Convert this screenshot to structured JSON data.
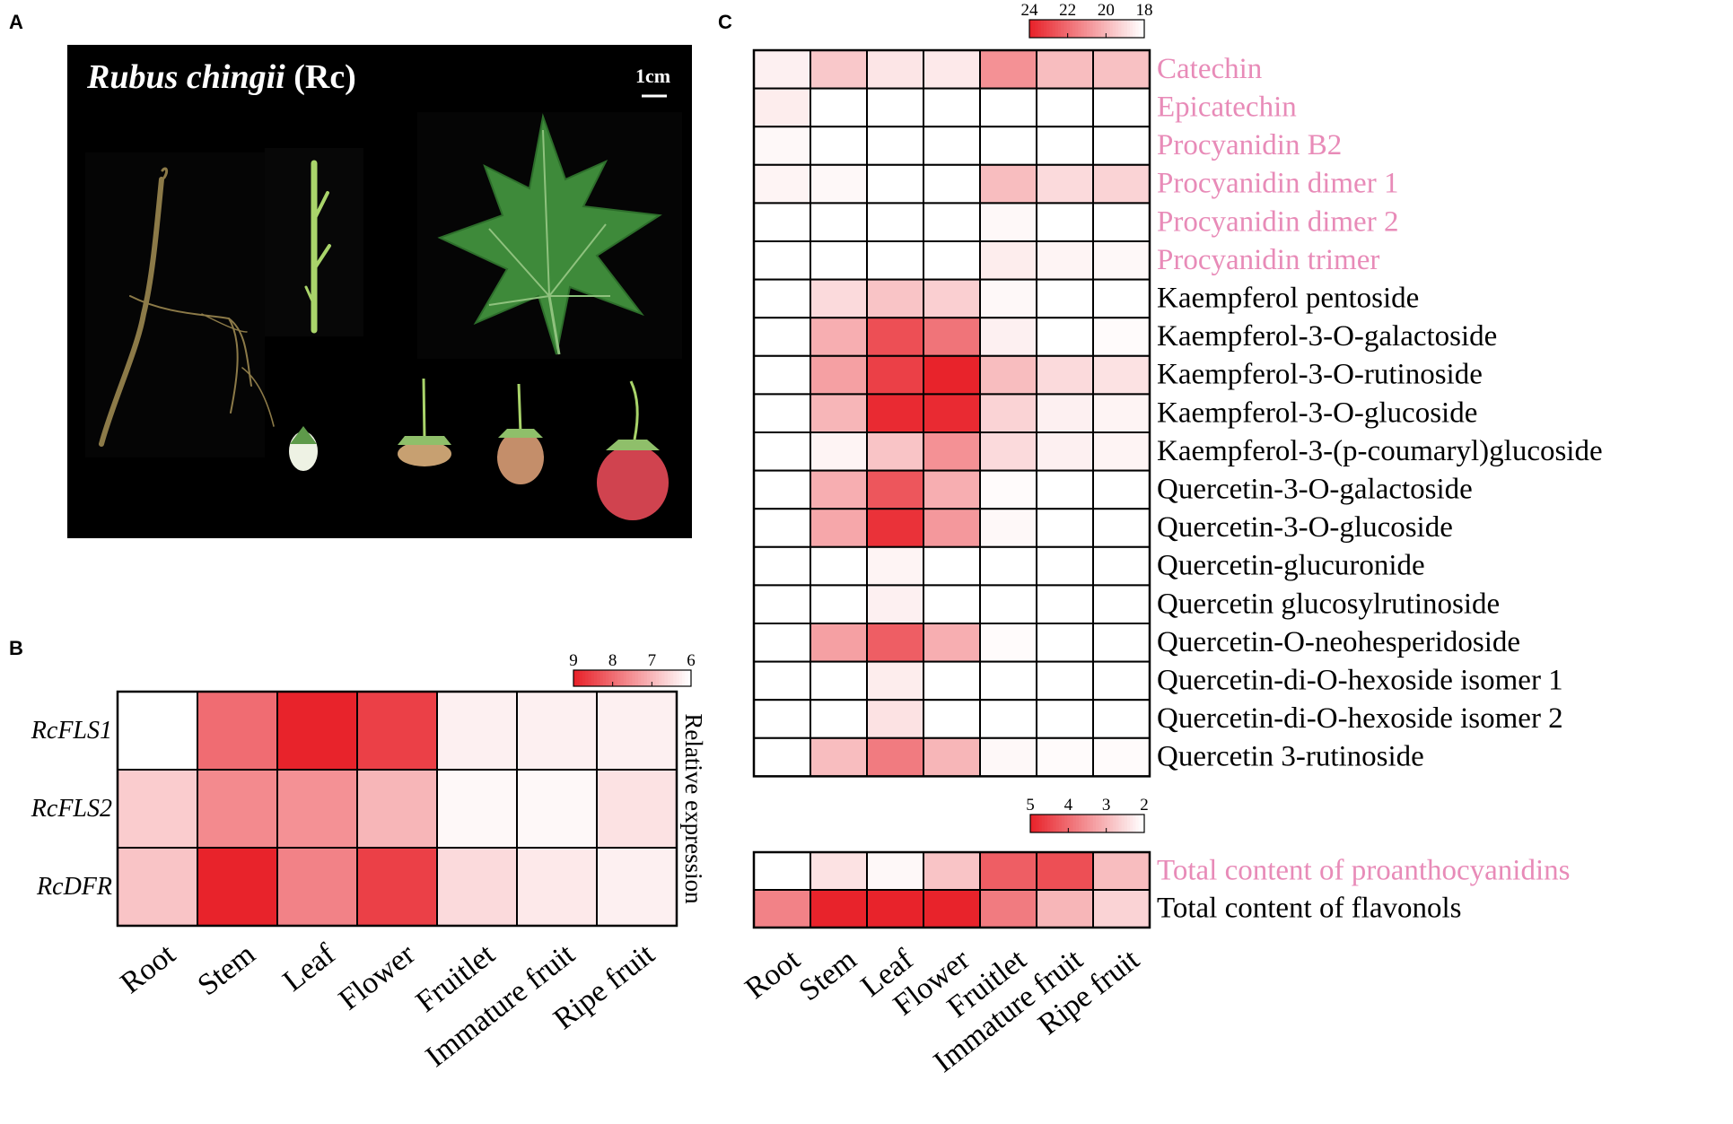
{
  "panels": {
    "a": "A",
    "b": "B",
    "c": "C"
  },
  "photo": {
    "species": "Rubus chingii",
    "abbr": "(Rc)",
    "scale_bar": "1cm"
  },
  "colors": {
    "high": "#e8232b",
    "low": "#ffffff",
    "accent_label": "#e88bb8",
    "text": "#000000",
    "grid": "#000000"
  },
  "chart_data": [
    {
      "id": "B",
      "type": "heatmap",
      "title": "",
      "columns": [
        "Root",
        "Stem",
        "Leaf",
        "Flower",
        "Fruitlet",
        "Immature fruit",
        "Ripe fruit"
      ],
      "rows": [
        "RcFLS1",
        "RcFLS2",
        "RcDFR"
      ],
      "values": [
        [
          6.0,
          8.0,
          9.0,
          8.6,
          6.2,
          6.2,
          6.2
        ],
        [
          6.7,
          7.6,
          7.5,
          7.0,
          6.1,
          6.1,
          6.4
        ],
        [
          6.8,
          9.0,
          7.7,
          8.6,
          6.5,
          6.3,
          6.2
        ]
      ],
      "colorbar": {
        "min": 6,
        "max": 9,
        "ticks": [
          "9",
          "8",
          "7",
          "6"
        ],
        "label": "Relative expression"
      }
    },
    {
      "id": "C-top",
      "type": "heatmap",
      "title": "",
      "columns": [
        "Root",
        "Stem",
        "Leaf",
        "Flower",
        "Fruitlet",
        "Immature fruit",
        "Ripe fruit"
      ],
      "rows": [
        "Catechin",
        "Epicatechin",
        "Procyanidin B2",
        "Procyanidin dimer 1",
        "Procyanidin dimer 2",
        "Procyanidin trimer",
        "Kaempferol pentoside",
        "Kaempferol-3-O-galactoside",
        "Kaempferol-3-O-rutinoside",
        "Kaempferol-3-O-glucoside",
        "Kaempferol-3-(p-coumaryl)glucoside",
        "Quercetin-3-O-galactoside",
        "Quercetin-3-O-glucoside",
        "Quercetin-glucuronide",
        "Quercetin glucosylrutinoside",
        "Quercetin-O-neohesperidoside",
        "Quercetin-di-O-hexoside isomer 1",
        "Quercetin-di-O-hexoside isomer 2",
        "Quercetin 3-rutinoside"
      ],
      "row_highlight": [
        true,
        true,
        true,
        true,
        true,
        true,
        false,
        false,
        false,
        false,
        false,
        false,
        false,
        false,
        false,
        false,
        false,
        false,
        false
      ],
      "values": [
        [
          18.4,
          19.5,
          18.7,
          18.6,
          21.0,
          19.8,
          19.7
        ],
        [
          18.5,
          18.0,
          18.0,
          18.0,
          18.0,
          18.0,
          18.0
        ],
        [
          18.2,
          18.0,
          18.0,
          18.0,
          18.0,
          18.0,
          18.0
        ],
        [
          18.3,
          18.2,
          18.0,
          18.0,
          19.8,
          19.0,
          19.2
        ],
        [
          18.0,
          18.0,
          18.0,
          18.0,
          18.2,
          18.0,
          18.0
        ],
        [
          18.0,
          18.0,
          18.0,
          18.0,
          18.5,
          18.3,
          18.2
        ],
        [
          18.0,
          19.0,
          19.6,
          19.3,
          18.2,
          18.0,
          18.0
        ],
        [
          18.0,
          20.2,
          22.8,
          21.8,
          18.4,
          18.0,
          18.1
        ],
        [
          18.0,
          20.6,
          23.2,
          24.0,
          19.8,
          19.0,
          18.8
        ],
        [
          18.0,
          20.0,
          23.8,
          23.8,
          19.2,
          18.4,
          18.3
        ],
        [
          18.0,
          18.3,
          19.6,
          21.0,
          19.0,
          18.4,
          18.3
        ],
        [
          18.0,
          20.2,
          22.6,
          20.2,
          18.1,
          18.0,
          18.0
        ],
        [
          18.0,
          20.4,
          23.6,
          20.8,
          18.2,
          18.0,
          18.0
        ],
        [
          18.0,
          18.0,
          18.3,
          18.0,
          18.0,
          18.0,
          18.0
        ],
        [
          18.0,
          18.0,
          18.4,
          18.0,
          18.0,
          18.0,
          18.0
        ],
        [
          18.0,
          20.6,
          22.4,
          20.2,
          18.1,
          18.0,
          18.0
        ],
        [
          18.0,
          18.0,
          18.5,
          18.0,
          18.0,
          18.0,
          18.0
        ],
        [
          18.0,
          18.0,
          18.8,
          18.0,
          18.0,
          18.0,
          18.0
        ],
        [
          18.0,
          19.8,
          21.6,
          20.0,
          18.2,
          18.1,
          18.1
        ]
      ],
      "colorbar": {
        "min": 18,
        "max": 24,
        "ticks": [
          "24",
          "22",
          "20",
          "18"
        ]
      }
    },
    {
      "id": "C-bottom",
      "type": "heatmap",
      "title": "",
      "columns": [
        "Root",
        "Stem",
        "Leaf",
        "Flower",
        "Fruitlet",
        "Immature fruit",
        "Ripe fruit"
      ],
      "rows": [
        "Total content of proanthocyanidins",
        "Total content of flavonols"
      ],
      "row_highlight": [
        true,
        false
      ],
      "values": [
        [
          2.0,
          2.4,
          2.1,
          2.8,
          4.2,
          4.4,
          2.9
        ],
        [
          3.7,
          5.0,
          5.0,
          5.0,
          3.8,
          3.0,
          2.6
        ]
      ],
      "colorbar": {
        "min": 2,
        "max": 5,
        "ticks": [
          "5",
          "4",
          "3",
          "2"
        ]
      }
    }
  ]
}
